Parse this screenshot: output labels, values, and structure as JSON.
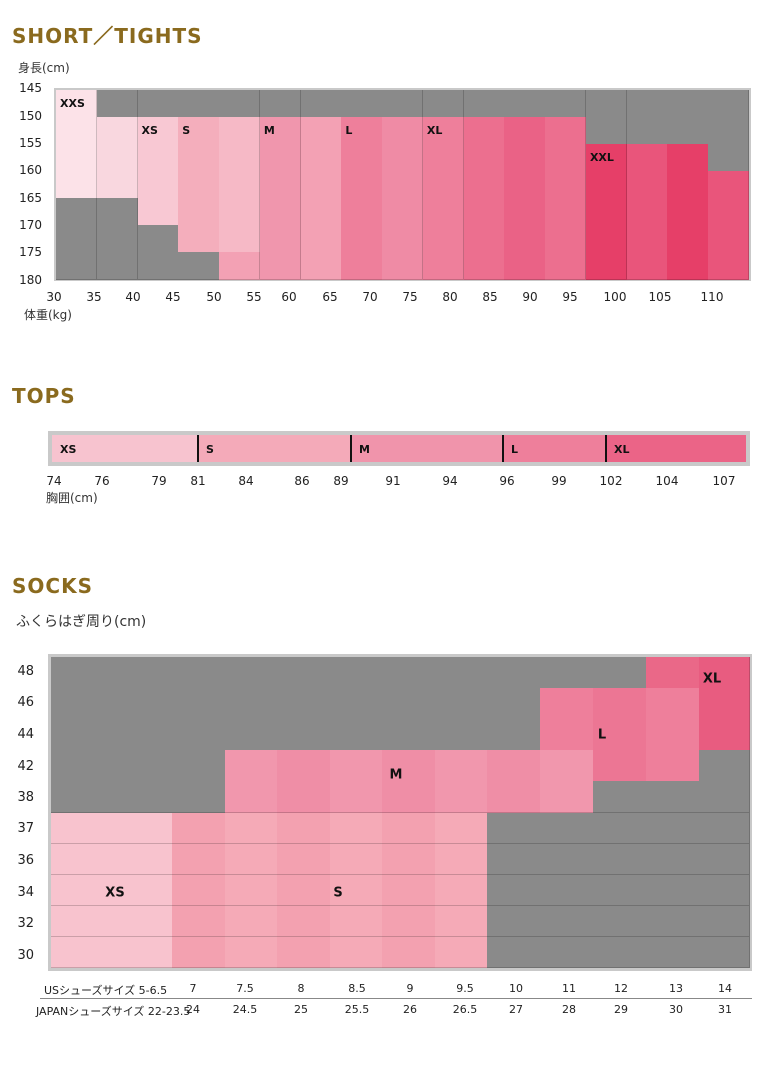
{
  "shorts": {
    "title": "SHORT／TIGHTS",
    "y_unit": "身長(cm)",
    "x_unit": "体重(kg)",
    "y_ticks": [
      "145",
      "150",
      "155",
      "160",
      "165",
      "170",
      "175",
      "180"
    ],
    "x_ticks": [
      "30",
      "35",
      "40",
      "45",
      "50",
      "55",
      "60",
      "65",
      "70",
      "75",
      "80",
      "85",
      "90",
      "95",
      "100",
      "105",
      "110"
    ],
    "size_labels": [
      "XXS",
      "XS",
      "S",
      "M",
      "L",
      "XL",
      "XXL"
    ],
    "colors": {
      "grey": "#8a8a8a",
      "XXS": "#fadde3",
      "XS": "#f7c3cf",
      "S": "#f4aab9",
      "M": "#f094ab",
      "L": "#ee7f9b",
      "XL": "#eb6487",
      "XXL": "#e83d66"
    }
  },
  "tops": {
    "title": "TOPS",
    "x_unit": "胸囲(cm)",
    "ticks": [
      "74",
      "76",
      "79",
      "81",
      "84",
      "86",
      "89",
      "91",
      "94",
      "96",
      "99",
      "102",
      "104",
      "107"
    ],
    "segments": [
      {
        "label": "XS",
        "from": 74,
        "to": 81,
        "color": "#f7c3cf"
      },
      {
        "label": "S",
        "from": 81,
        "to": 89,
        "color": "#f4aab9"
      },
      {
        "label": "M",
        "from": 89,
        "to": 96,
        "color": "#f094ab"
      },
      {
        "label": "L",
        "from": 96,
        "to": 102,
        "color": "#ee7f9b"
      },
      {
        "label": "XL",
        "from": 102,
        "to": 107,
        "color": "#eb6487"
      }
    ]
  },
  "socks": {
    "title": "SOCKS",
    "y_unit": "ふくらはぎ周り(cm)",
    "y_ticks": [
      "48",
      "46",
      "44",
      "42",
      "38",
      "37",
      "36",
      "34",
      "32",
      "30"
    ],
    "us_label": "USシューズサイズ 5-6.5",
    "jp_label": "JAPANシューズサイズ 22-23.5",
    "us_sizes": [
      "7",
      "7.5",
      "8",
      "8.5",
      "9",
      "9.5",
      "10",
      "11",
      "12",
      "13",
      "14"
    ],
    "jp_sizes": [
      "24",
      "24.5",
      "25",
      "25.5",
      "26",
      "26.5",
      "27",
      "28",
      "29",
      "30",
      "31"
    ],
    "size_labels": [
      "XS",
      "S",
      "M",
      "L",
      "XL"
    ],
    "colors": {
      "grey": "#8a8a8a",
      "XS": "#f7bfcb",
      "S": "#f4a6b3",
      "M": "#f092aa",
      "L": "#ee7a96",
      "XL": "#e96282"
    }
  },
  "chart_data": [
    {
      "type": "heatmap",
      "title": "SHORT／TIGHTS",
      "xlabel": "体重(kg)",
      "ylabel": "身長(cm)",
      "x": [
        30,
        35,
        40,
        45,
        50,
        55,
        60,
        65,
        70,
        75,
        80,
        85,
        90,
        95,
        100,
        105,
        110
      ],
      "y": [
        145,
        150,
        155,
        160,
        165,
        170,
        175,
        180
      ],
      "size_regions": [
        {
          "size": "XXS",
          "weight_kg": [
            30,
            35
          ],
          "height_cm": [
            145,
            165
          ]
        },
        {
          "size": "XS",
          "weight_kg": [
            35,
            45
          ],
          "height_cm": [
            150,
            175
          ]
        },
        {
          "size": "S",
          "weight_kg": [
            40,
            55
          ],
          "height_cm": [
            150,
            180
          ]
        },
        {
          "size": "M",
          "weight_kg": [
            50,
            65
          ],
          "height_cm": [
            150,
            180
          ]
        },
        {
          "size": "L",
          "weight_kg": [
            60,
            80
          ],
          "height_cm": [
            150,
            180
          ]
        },
        {
          "size": "XL",
          "weight_kg": [
            70,
            95
          ],
          "height_cm": [
            150,
            180
          ]
        },
        {
          "size": "XXL",
          "weight_kg": [
            90,
            110
          ],
          "height_cm": [
            155,
            180
          ]
        }
      ]
    },
    {
      "type": "bar",
      "title": "TOPS",
      "xlabel": "胸囲(cm)",
      "categories": [
        "XS",
        "S",
        "M",
        "L",
        "XL"
      ],
      "ranges_cm": [
        [
          74,
          81
        ],
        [
          81,
          89
        ],
        [
          89,
          96
        ],
        [
          96,
          102
        ],
        [
          102,
          107
        ]
      ]
    },
    {
      "type": "heatmap",
      "title": "SOCKS",
      "ylabel": "ふくらはぎ周り(cm)",
      "x_us": [
        "5-6.5",
        "7",
        "7.5",
        "8",
        "8.5",
        "9",
        "9.5",
        "10",
        "11",
        "12",
        "13",
        "14"
      ],
      "x_jp": [
        "22-23.5",
        "24",
        "24.5",
        "25",
        "25.5",
        "26",
        "26.5",
        "27",
        "28",
        "29",
        "30",
        "31"
      ],
      "y": [
        30,
        32,
        34,
        36,
        37,
        38,
        42,
        44,
        46,
        48
      ],
      "size_regions": [
        {
          "size": "XS",
          "us": [
            "5-6.5"
          ],
          "calf_cm": [
            30,
            37
          ]
        },
        {
          "size": "S",
          "us": [
            "7",
            "9.5"
          ],
          "calf_cm": [
            30,
            37
          ]
        },
        {
          "size": "M",
          "us": [
            "7.5",
            "10"
          ],
          "calf_cm": [
            38,
            42
          ]
        },
        {
          "size": "L",
          "us": [
            "10",
            "13"
          ],
          "calf_cm": [
            42,
            46
          ]
        },
        {
          "size": "XL",
          "us": [
            "13",
            "14"
          ],
          "calf_cm": [
            44,
            48
          ]
        }
      ]
    }
  ]
}
